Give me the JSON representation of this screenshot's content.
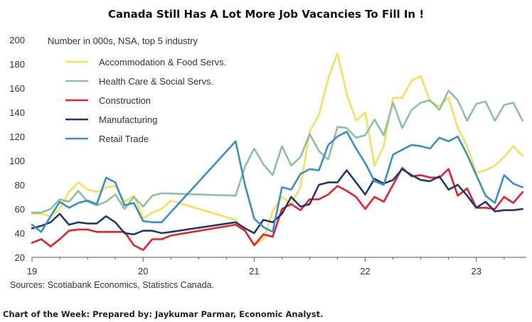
{
  "chart_data": {
    "type": "line",
    "title": "Canada Still Has A Lot More Job Vacancies To Fill In !",
    "subtitle": "Number in 000s, NSA, top 5 industry",
    "xlabel": "",
    "ylabel": "",
    "ylim": [
      20,
      200
    ],
    "yticks": [
      20,
      40,
      60,
      80,
      100,
      120,
      140,
      160,
      180,
      200
    ],
    "xlim": [
      2019.0,
      2023.45
    ],
    "xticks": [
      {
        "value": 2019,
        "label": "19"
      },
      {
        "value": 2020,
        "label": "20"
      },
      {
        "value": 2021,
        "label": "21"
      },
      {
        "value": 2022,
        "label": "22"
      },
      {
        "value": 2023,
        "label": "23"
      }
    ],
    "legend_position": "top-left",
    "source": "Sources: Scotiabank Economics, Statistics Canada.",
    "footer": "Chart of the Week: Prepared by: Jaykumar Parmar, Economic Analyst.",
    "series": [
      {
        "name": "Accommodation & Food Servs.",
        "color": "#f5df5e",
        "x": [
          2019.0,
          2019.083,
          2019.167,
          2019.25,
          2019.333,
          2019.417,
          2019.5,
          2019.583,
          2019.667,
          2019.75,
          2019.833,
          2019.917,
          2020.0,
          2020.083,
          2020.167,
          2020.25,
          2020.833,
          2020.917,
          2021.0,
          2021.083,
          2021.167,
          2021.25,
          2021.333,
          2021.417,
          2021.5,
          2021.583,
          2021.667,
          2021.75,
          2021.833,
          2021.917,
          2022.0,
          2022.083,
          2022.167,
          2022.25,
          2022.333,
          2022.417,
          2022.5,
          2022.583,
          2022.667,
          2022.75,
          2022.833,
          2022.917,
          2023.0,
          2023.083,
          2023.167,
          2023.25,
          2023.333,
          2023.417
        ],
        "values": [
          56,
          56,
          54,
          60,
          74,
          82,
          76,
          74,
          78,
          79,
          66,
          71,
          52,
          57,
          60,
          67,
          51,
          42,
          30,
          35,
          58,
          70,
          64,
          78,
          124,
          138,
          168,
          189,
          155,
          133,
          140,
          96,
          112,
          152,
          152,
          166,
          170,
          149,
          145,
          152,
          127,
          112,
          90,
          92,
          96,
          103,
          112,
          104
        ]
      },
      {
        "name": "Health Care & Social Servs.",
        "color": "#8dc19d",
        "x": [
          2019.0,
          2019.083,
          2019.167,
          2019.25,
          2019.333,
          2019.417,
          2019.5,
          2019.583,
          2019.667,
          2019.75,
          2019.833,
          2019.917,
          2020.0,
          2020.083,
          2020.167,
          2020.833,
          2020.917,
          2021.0,
          2021.083,
          2021.167,
          2021.25,
          2021.333,
          2021.417,
          2021.5,
          2021.583,
          2021.667,
          2021.75,
          2021.833,
          2021.917,
          2022.0,
          2022.083,
          2022.167,
          2022.25,
          2022.333,
          2022.417,
          2022.5,
          2022.583,
          2022.667,
          2022.75,
          2022.833,
          2022.917,
          2023.0,
          2023.083,
          2023.167,
          2023.25,
          2023.333,
          2023.417
        ],
        "values": [
          57,
          57,
          60,
          68,
          66,
          75,
          66,
          63,
          66,
          72,
          60,
          70,
          62,
          71,
          73,
          71,
          95,
          110,
          97,
          88,
          112,
          96,
          103,
          122,
          108,
          101,
          128,
          127,
          119,
          121,
          134,
          121,
          148,
          127,
          142,
          148,
          150,
          142,
          158,
          150,
          133,
          147,
          149,
          133,
          146,
          148,
          133
        ]
      },
      {
        "name": "Construction",
        "color": "#e8202e",
        "x": [
          2019.0,
          2019.083,
          2019.167,
          2019.25,
          2019.333,
          2019.417,
          2019.5,
          2019.583,
          2019.667,
          2019.75,
          2019.833,
          2019.917,
          2020.0,
          2020.083,
          2020.167,
          2020.25,
          2020.833,
          2020.917,
          2021.0,
          2021.083,
          2021.167,
          2021.25,
          2021.333,
          2021.417,
          2021.5,
          2021.583,
          2021.667,
          2021.75,
          2021.833,
          2021.917,
          2022.0,
          2022.083,
          2022.167,
          2022.25,
          2022.333,
          2022.417,
          2022.5,
          2022.583,
          2022.667,
          2022.75,
          2022.833,
          2022.917,
          2023.0,
          2023.083,
          2023.167,
          2023.25,
          2023.333,
          2023.417
        ],
        "values": [
          32,
          35,
          29,
          35,
          42,
          43,
          43,
          41,
          41,
          41,
          41,
          30,
          26,
          35,
          35,
          38,
          47,
          42,
          30,
          39,
          37,
          60,
          64,
          59,
          68,
          68,
          72,
          79,
          75,
          70,
          60,
          70,
          66,
          80,
          94,
          87,
          88,
          86,
          86,
          93,
          71,
          77,
          61,
          61,
          60,
          70,
          65,
          74
        ]
      },
      {
        "name": "Manufacturing",
        "color": "#1f3a68",
        "x": [
          2019.0,
          2019.083,
          2019.167,
          2019.25,
          2019.333,
          2019.417,
          2019.5,
          2019.583,
          2019.667,
          2019.75,
          2019.833,
          2019.917,
          2020.0,
          2020.083,
          2020.167,
          2020.25,
          2020.833,
          2020.917,
          2021.0,
          2021.083,
          2021.167,
          2021.25,
          2021.333,
          2021.417,
          2021.5,
          2021.583,
          2021.667,
          2021.75,
          2021.833,
          2021.917,
          2022.0,
          2022.083,
          2022.167,
          2022.25,
          2022.333,
          2022.417,
          2022.5,
          2022.583,
          2022.667,
          2022.75,
          2022.833,
          2022.917,
          2023.0,
          2023.083,
          2023.167,
          2023.25,
          2023.333,
          2023.417
        ],
        "values": [
          44,
          46,
          49,
          56,
          47,
          49,
          48,
          48,
          54,
          49,
          40,
          39,
          42,
          42,
          40,
          41,
          49,
          44,
          40,
          51,
          49,
          56,
          70,
          62,
          64,
          80,
          82,
          82,
          92,
          82,
          72,
          85,
          81,
          84,
          93,
          88,
          84,
          83,
          87,
          76,
          80,
          71,
          61,
          66,
          58,
          59,
          59,
          60
        ]
      },
      {
        "name": "Retail Trade",
        "color": "#3b8fc4",
        "x": [
          2019.0,
          2019.083,
          2019.167,
          2019.25,
          2019.333,
          2019.417,
          2019.5,
          2019.583,
          2019.667,
          2019.75,
          2019.833,
          2019.917,
          2020.0,
          2020.083,
          2020.167,
          2020.833,
          2020.917,
          2021.0,
          2021.083,
          2021.167,
          2021.25,
          2021.333,
          2021.417,
          2021.5,
          2021.583,
          2021.667,
          2021.75,
          2021.833,
          2021.917,
          2022.0,
          2022.083,
          2022.167,
          2022.25,
          2022.333,
          2022.417,
          2022.5,
          2022.583,
          2022.667,
          2022.75,
          2022.833,
          2022.917,
          2023.0,
          2023.083,
          2023.167,
          2023.25,
          2023.333,
          2023.417
        ],
        "values": [
          47,
          41,
          54,
          66,
          61,
          65,
          67,
          64,
          86,
          82,
          63,
          65,
          50,
          49,
          49,
          116,
          80,
          52,
          45,
          41,
          78,
          76,
          89,
          93,
          92,
          113,
          120,
          124,
          110,
          98,
          83,
          80,
          105,
          109,
          113,
          112,
          110,
          119,
          116,
          120,
          105,
          88,
          71,
          65,
          88,
          81,
          78
        ]
      }
    ]
  }
}
